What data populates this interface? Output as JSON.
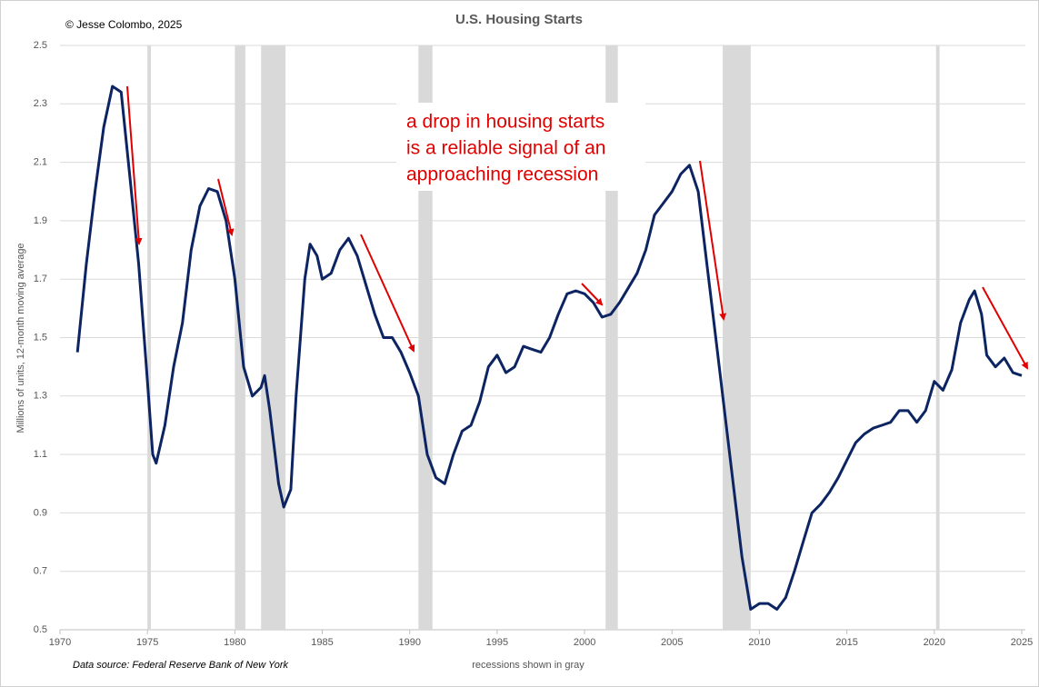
{
  "chart_data": {
    "type": "line",
    "title": "U.S. Housing Starts",
    "credit": "© Jesse Colombo, 2025",
    "ylabel": "Millions of units, 12-month moving average",
    "source": "Data source: Federal Reserve Bank of New York",
    "note": "recessions shown in gray",
    "annotation": [
      "a drop in housing starts",
      "is a reliable signal of an",
      "approaching recession"
    ],
    "xlim": [
      1970,
      2025
    ],
    "xticks": [
      1970,
      1975,
      1980,
      1985,
      1990,
      1995,
      2000,
      2005,
      2010,
      2015,
      2020,
      2025
    ],
    "ylim": [
      0.5,
      2.5
    ],
    "yticks": [
      0.5,
      0.7,
      0.9,
      1.1,
      1.3,
      1.5,
      1.7,
      1.9,
      2.1,
      2.3,
      2.5
    ],
    "grid": true,
    "color": "#0c2461",
    "recession_color": "#d9d9d9",
    "recessions": [
      [
        1975.0,
        1975.2
      ],
      [
        1980.0,
        1980.6
      ],
      [
        1981.5,
        1982.9
      ],
      [
        1990.5,
        1991.3
      ],
      [
        2001.2,
        2001.9
      ],
      [
        2007.9,
        2009.5
      ],
      [
        2020.1,
        2020.3
      ]
    ],
    "x": [
      1971.0,
      1971.5,
      1972.0,
      1972.5,
      1973.0,
      1973.5,
      1974.0,
      1974.5,
      1975.0,
      1975.3,
      1975.5,
      1976.0,
      1976.5,
      1977.0,
      1977.5,
      1978.0,
      1978.5,
      1979.0,
      1979.5,
      1980.0,
      1980.5,
      1981.0,
      1981.5,
      1981.7,
      1982.0,
      1982.5,
      1982.8,
      1983.2,
      1983.5,
      1984.0,
      1984.3,
      1984.7,
      1985.0,
      1985.5,
      1986.0,
      1986.5,
      1987.0,
      1987.5,
      1988.0,
      1988.5,
      1989.0,
      1989.5,
      1990.0,
      1990.5,
      1991.0,
      1991.5,
      1992.0,
      1992.5,
      1993.0,
      1993.5,
      1994.0,
      1994.5,
      1995.0,
      1995.5,
      1996.0,
      1996.5,
      1997.0,
      1997.5,
      1998.0,
      1998.5,
      1999.0,
      1999.5,
      2000.0,
      2000.5,
      2001.0,
      2001.5,
      2002.0,
      2002.5,
      2003.0,
      2003.5,
      2004.0,
      2004.5,
      2005.0,
      2005.5,
      2006.0,
      2006.5,
      2007.0,
      2007.5,
      2008.0,
      2008.5,
      2009.0,
      2009.5,
      2010.0,
      2010.5,
      2011.0,
      2011.5,
      2012.0,
      2012.5,
      2013.0,
      2013.5,
      2014.0,
      2014.5,
      2015.0,
      2015.5,
      2016.0,
      2016.5,
      2017.0,
      2017.5,
      2018.0,
      2018.5,
      2019.0,
      2019.5,
      2020.0,
      2020.5,
      2021.0,
      2021.5,
      2022.0,
      2022.3,
      2022.7,
      2023.0,
      2023.5,
      2024.0,
      2024.5,
      2025.0
    ],
    "values": [
      1.45,
      1.75,
      2.0,
      2.22,
      2.36,
      2.34,
      2.05,
      1.75,
      1.35,
      1.1,
      1.07,
      1.2,
      1.4,
      1.55,
      1.8,
      1.95,
      2.01,
      2.0,
      1.9,
      1.7,
      1.4,
      1.3,
      1.33,
      1.37,
      1.25,
      1.0,
      0.92,
      0.98,
      1.3,
      1.7,
      1.82,
      1.78,
      1.7,
      1.72,
      1.8,
      1.84,
      1.78,
      1.68,
      1.58,
      1.5,
      1.5,
      1.45,
      1.38,
      1.3,
      1.1,
      1.02,
      1.0,
      1.1,
      1.18,
      1.2,
      1.28,
      1.4,
      1.44,
      1.38,
      1.4,
      1.47,
      1.46,
      1.45,
      1.5,
      1.58,
      1.65,
      1.66,
      1.65,
      1.62,
      1.57,
      1.58,
      1.62,
      1.67,
      1.72,
      1.8,
      1.92,
      1.96,
      2.0,
      2.06,
      2.09,
      2.0,
      1.75,
      1.5,
      1.25,
      1.0,
      0.75,
      0.57,
      0.59,
      0.59,
      0.57,
      0.61,
      0.7,
      0.8,
      0.9,
      0.93,
      0.97,
      1.02,
      1.08,
      1.14,
      1.17,
      1.19,
      1.2,
      1.21,
      1.25,
      1.25,
      1.21,
      1.25,
      1.35,
      1.32,
      1.39,
      1.55,
      1.63,
      1.66,
      1.58,
      1.44,
      1.4,
      1.43,
      1.38,
      1.37
    ]
  }
}
